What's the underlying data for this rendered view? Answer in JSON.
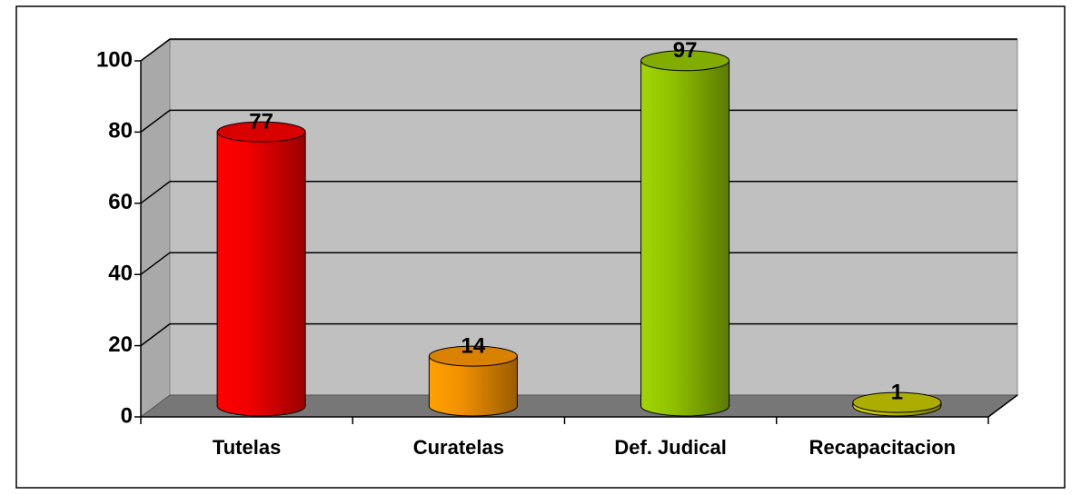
{
  "chart_data": {
    "type": "bar3d",
    "categories": [
      "Tutelas",
      "Curatelas",
      "Def. Judical",
      "Recapacitacion"
    ],
    "values": [
      77,
      14,
      97,
      1
    ],
    "colors": [
      "#ff0000",
      "#ff9900",
      "#99cc00",
      "#cccc00"
    ],
    "ylim": [
      0,
      100
    ],
    "yticks": [
      0,
      20,
      40,
      60,
      80,
      100
    ],
    "grid": true
  }
}
